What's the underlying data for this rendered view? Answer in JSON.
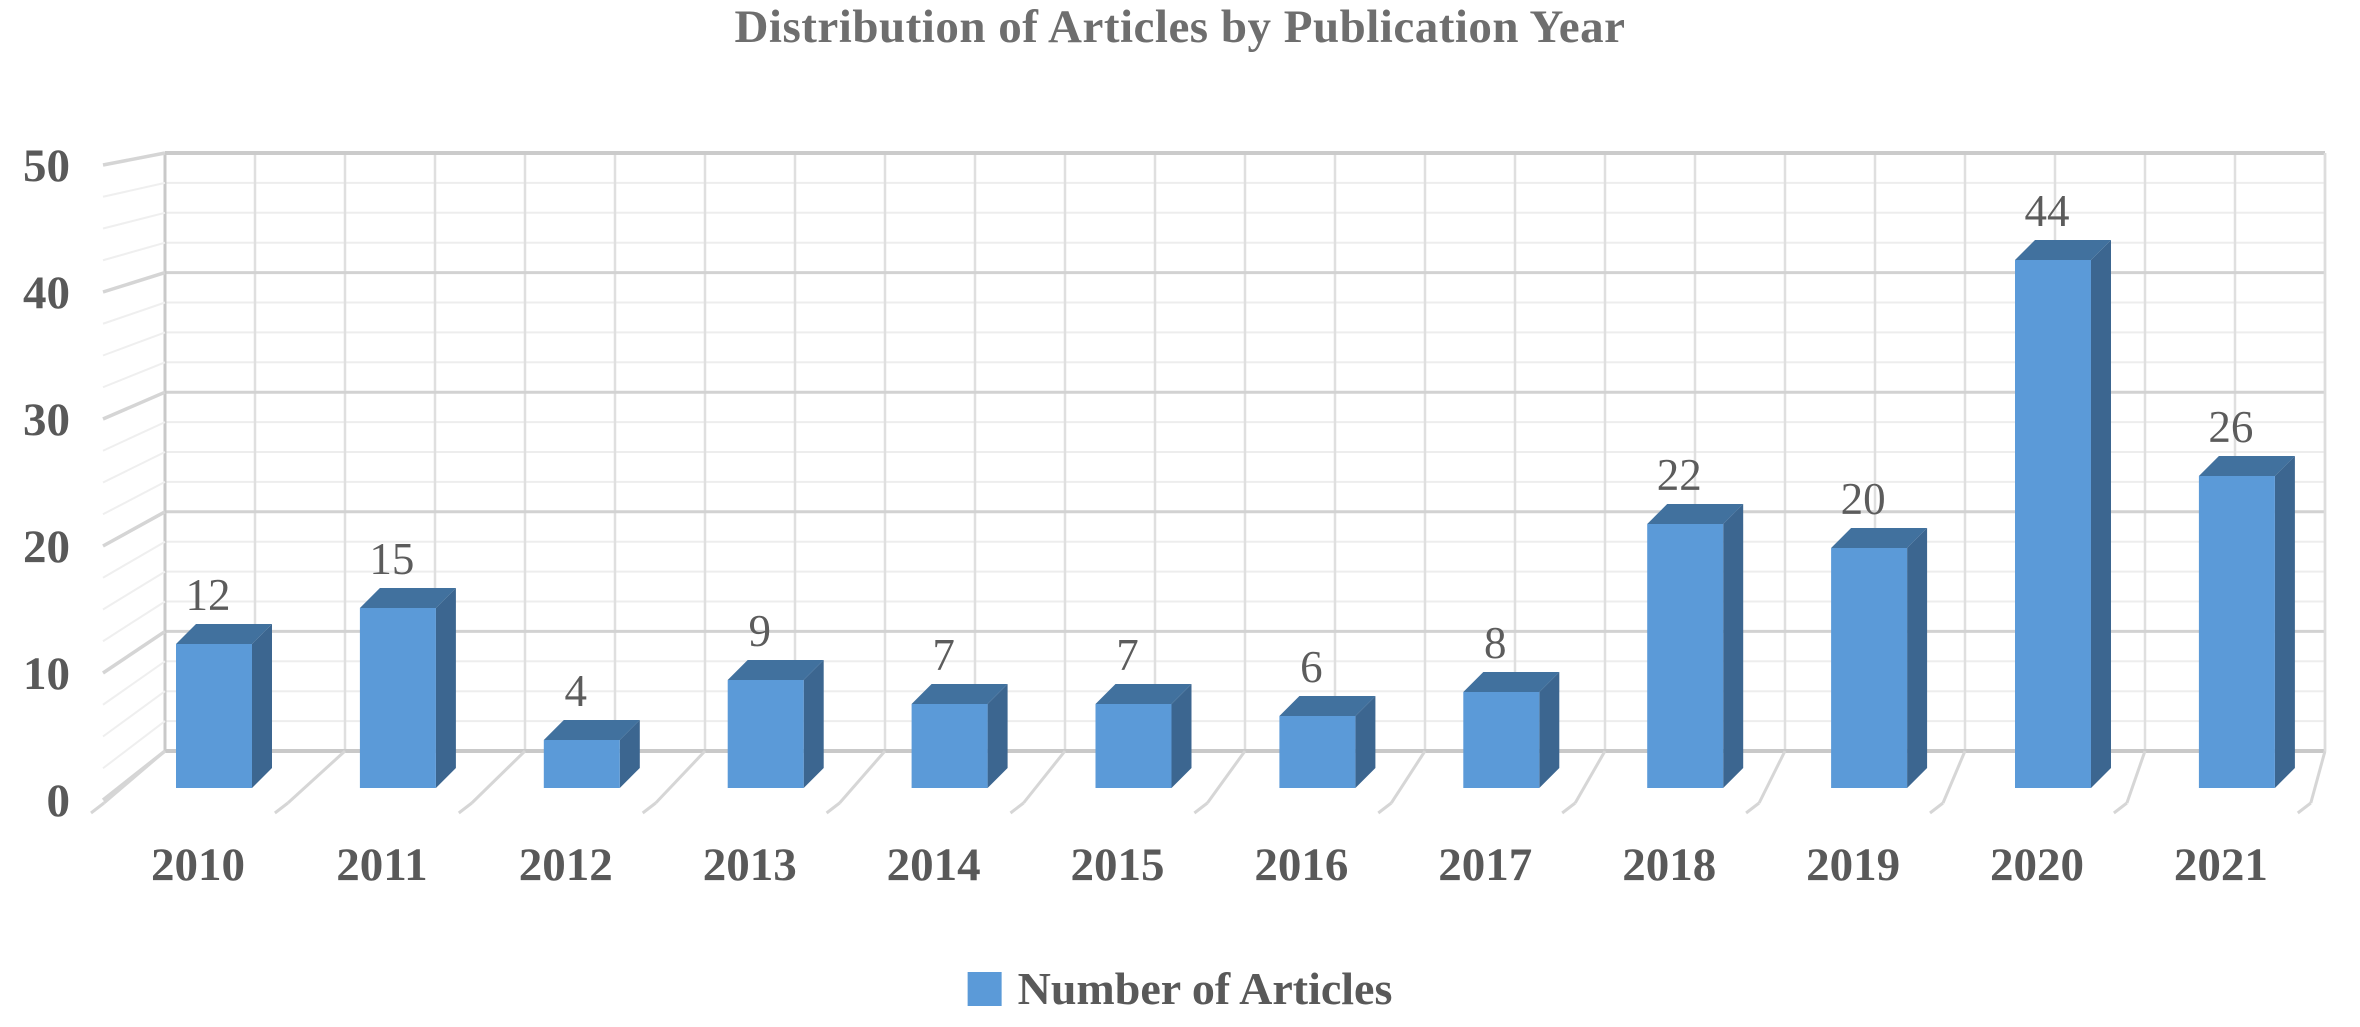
{
  "chart_data": {
    "type": "bar",
    "variant": "3d-column",
    "title": "Distribution of Articles by Publication Year",
    "categories": [
      "2010",
      "2011",
      "2012",
      "2013",
      "2014",
      "2015",
      "2016",
      "2017",
      "2018",
      "2019",
      "2020",
      "2021"
    ],
    "values": [
      12,
      15,
      4,
      9,
      7,
      7,
      6,
      8,
      22,
      20,
      44,
      26
    ],
    "series_name": "Number of Articles",
    "legend": {
      "label": "Number of Articles",
      "position": "bottom"
    },
    "xlabel": "",
    "ylabel": "",
    "ylim": [
      0,
      50
    ],
    "yticks": [
      0,
      10,
      20,
      30,
      40,
      50
    ],
    "minor_grid_step": 2.5,
    "grid": true,
    "colors": {
      "bar_front": "#5B9AD8",
      "bar_top": "#41719E",
      "bar_side": "#3C6690",
      "axis_text": "#595959",
      "value_label_text": "#5C5C5C",
      "title_text": "#6E6E6E",
      "grid_major": "#D2D2D2",
      "grid_minor": "#EDEDED",
      "wall_edge": "#C9C9C9",
      "background": "#FFFFFF"
    }
  }
}
